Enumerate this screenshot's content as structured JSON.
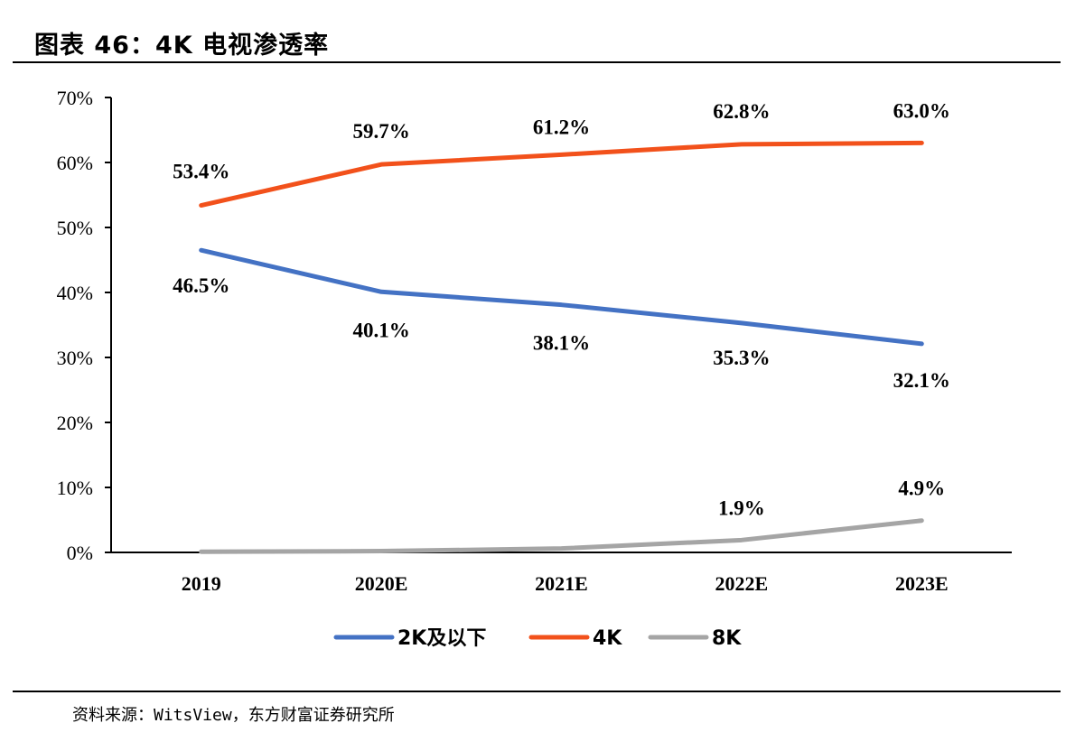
{
  "header": {
    "title": "图表 46：4K 电视渗透率"
  },
  "footer": {
    "source": "资料来源：WitsView，东方财富证券研究所"
  },
  "chart_data": {
    "type": "line",
    "title": "",
    "xlabel": "",
    "ylabel": "",
    "categories": [
      "2019",
      "2020E",
      "2021E",
      "2022E",
      "2023E"
    ],
    "ylim": [
      0,
      70
    ],
    "yticks": [
      "0%",
      "10%",
      "20%",
      "30%",
      "40%",
      "50%",
      "60%",
      "70%"
    ],
    "grid": false,
    "legend_position": "bottom",
    "series": [
      {
        "name": "2K及以下",
        "color": "#4472C4",
        "values": [
          46.5,
          40.1,
          38.1,
          35.3,
          32.1
        ],
        "labels": [
          "46.5%",
          "40.1%",
          "38.1%",
          "35.3%",
          "32.1%"
        ]
      },
      {
        "name": "4K",
        "color": "#F2511B",
        "values": [
          53.4,
          59.7,
          61.2,
          62.8,
          63.0
        ],
        "labels": [
          "53.4%",
          "59.7%",
          "61.2%",
          "62.8%",
          "63.0%"
        ]
      },
      {
        "name": "8K",
        "color": "#A5A5A5",
        "values": [
          0.1,
          0.2,
          0.6,
          1.9,
          4.9
        ],
        "labels": [
          "",
          "",
          "",
          "1.9%",
          "4.9%"
        ]
      }
    ]
  }
}
